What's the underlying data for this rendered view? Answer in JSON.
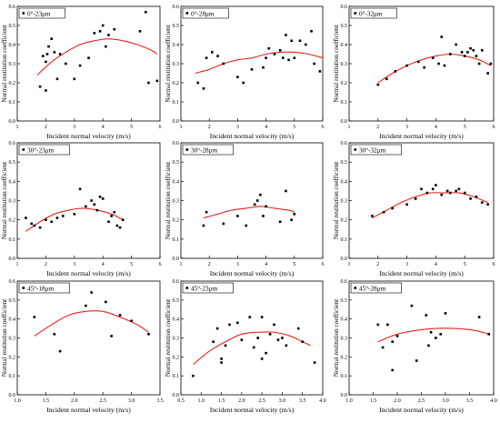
{
  "colors": {
    "points": "#000000",
    "fit": "#e8221c",
    "axis": "#000000"
  },
  "ylabel_all": "Normal restitution coefficient",
  "xlabel_all": "Incident normal velocity  (m/s)",
  "chart_data": [
    {
      "type": "scatter",
      "legend": "0°-23μm",
      "legend_position": "top-left",
      "xlim": [
        1,
        6
      ],
      "ylim": [
        0.0,
        0.6
      ],
      "xticks": [
        "1",
        "2",
        "3",
        "4",
        "5",
        "6"
      ],
      "yticks": [
        "0.0",
        "0.1",
        "0.2",
        "0.3",
        "0.4",
        "0.5",
        "0.6"
      ],
      "xlabel": "Incident normal velocity  (m/s)",
      "ylabel": "Normal restitution coefficient",
      "points": [
        [
          1.8,
          0.18
        ],
        [
          1.9,
          0.34
        ],
        [
          2.0,
          0.16
        ],
        [
          2.0,
          0.31
        ],
        [
          2.05,
          0.35
        ],
        [
          2.1,
          0.39
        ],
        [
          2.2,
          0.43
        ],
        [
          2.3,
          0.36
        ],
        [
          2.4,
          0.22
        ],
        [
          2.5,
          0.35
        ],
        [
          2.7,
          0.3
        ],
        [
          3.0,
          0.22
        ],
        [
          3.2,
          0.29
        ],
        [
          3.5,
          0.33
        ],
        [
          3.7,
          0.46
        ],
        [
          3.9,
          0.47
        ],
        [
          4.0,
          0.5
        ],
        [
          4.1,
          0.39
        ],
        [
          4.2,
          0.45
        ],
        [
          4.4,
          0.48
        ],
        [
          5.3,
          0.47
        ],
        [
          5.5,
          0.57
        ],
        [
          5.6,
          0.2
        ],
        [
          5.9,
          0.21
        ]
      ],
      "fit": [
        [
          1.7,
          0.24
        ],
        [
          2.2,
          0.31
        ],
        [
          2.7,
          0.36
        ],
        [
          3.2,
          0.4
        ],
        [
          3.7,
          0.42
        ],
        [
          4.2,
          0.43
        ],
        [
          4.7,
          0.42
        ],
        [
          5.2,
          0.4
        ],
        [
          5.7,
          0.37
        ],
        [
          5.9,
          0.35
        ]
      ]
    },
    {
      "type": "scatter",
      "legend": "0°-28μm",
      "legend_position": "top-left",
      "xlim": [
        1,
        6
      ],
      "ylim": [
        0.0,
        0.6
      ],
      "xticks": [
        "1",
        "2",
        "3",
        "4",
        "5",
        "6"
      ],
      "yticks": [
        "0.0",
        "0.1",
        "0.2",
        "0.3",
        "0.4",
        "0.5",
        "0.6"
      ],
      "xlabel": "Incident normal velocity  (m/s)",
      "ylabel": "Normal restitution coefficient",
      "points": [
        [
          1.6,
          0.2
        ],
        [
          1.8,
          0.17
        ],
        [
          1.9,
          0.33
        ],
        [
          2.1,
          0.36
        ],
        [
          2.3,
          0.34
        ],
        [
          2.5,
          0.3
        ],
        [
          3.0,
          0.23
        ],
        [
          3.2,
          0.2
        ],
        [
          3.5,
          0.27
        ],
        [
          3.9,
          0.28
        ],
        [
          4.0,
          0.33
        ],
        [
          4.1,
          0.38
        ],
        [
          4.3,
          0.35
        ],
        [
          4.5,
          0.37
        ],
        [
          4.6,
          0.33
        ],
        [
          4.7,
          0.45
        ],
        [
          4.8,
          0.32
        ],
        [
          4.9,
          0.42
        ],
        [
          5.0,
          0.33
        ],
        [
          5.2,
          0.42
        ],
        [
          5.4,
          0.4
        ],
        [
          5.6,
          0.47
        ],
        [
          5.7,
          0.3
        ],
        [
          5.9,
          0.26
        ]
      ],
      "fit": [
        [
          1.5,
          0.25
        ],
        [
          2.0,
          0.27
        ],
        [
          2.5,
          0.3
        ],
        [
          3.0,
          0.32
        ],
        [
          3.5,
          0.33
        ],
        [
          4.0,
          0.35
        ],
        [
          4.5,
          0.36
        ],
        [
          5.0,
          0.36
        ],
        [
          5.5,
          0.35
        ],
        [
          6.0,
          0.33
        ]
      ]
    },
    {
      "type": "scatter",
      "legend": "0°-32μm",
      "legend_position": "top-left",
      "xlim": [
        1,
        6
      ],
      "ylim": [
        0.0,
        0.6
      ],
      "xticks": [
        "1",
        "2",
        "3",
        "4",
        "5",
        "6"
      ],
      "yticks": [
        "0.0",
        "0.1",
        "0.2",
        "0.3",
        "0.4",
        "0.5",
        "0.6"
      ],
      "xlabel": "Incident normal velocity  (m/s)",
      "ylabel": "Normal restitution coefficient",
      "points": [
        [
          2.0,
          0.19
        ],
        [
          2.3,
          0.22
        ],
        [
          2.6,
          0.26
        ],
        [
          3.0,
          0.29
        ],
        [
          3.4,
          0.31
        ],
        [
          3.6,
          0.28
        ],
        [
          3.9,
          0.33
        ],
        [
          4.1,
          0.3
        ],
        [
          4.2,
          0.44
        ],
        [
          4.3,
          0.29
        ],
        [
          4.5,
          0.35
        ],
        [
          4.7,
          0.4
        ],
        [
          4.9,
          0.36
        ],
        [
          5.0,
          0.34
        ],
        [
          5.1,
          0.36
        ],
        [
          5.2,
          0.38
        ],
        [
          5.3,
          0.37
        ],
        [
          5.4,
          0.34
        ],
        [
          5.5,
          0.3
        ],
        [
          5.6,
          0.37
        ],
        [
          5.8,
          0.25
        ],
        [
          5.9,
          0.3
        ]
      ],
      "fit": [
        [
          2.0,
          0.2
        ],
        [
          2.5,
          0.25
        ],
        [
          3.0,
          0.29
        ],
        [
          3.5,
          0.32
        ],
        [
          4.0,
          0.34
        ],
        [
          4.5,
          0.35
        ],
        [
          5.0,
          0.34
        ],
        [
          5.5,
          0.32
        ],
        [
          5.9,
          0.29
        ]
      ]
    },
    {
      "type": "scatter",
      "legend": "30°-23μm",
      "legend_position": "top-left",
      "xlim": [
        1,
        6
      ],
      "ylim": [
        0.0,
        0.6
      ],
      "xticks": [
        "1",
        "2",
        "3",
        "4",
        "5",
        "6"
      ],
      "yticks": [
        "0.0",
        "0.1",
        "0.2",
        "0.3",
        "0.4",
        "0.5",
        "0.6"
      ],
      "xlabel": "Incident normal velocity  (m/s)",
      "ylabel": "Normal restitution coefficient",
      "points": [
        [
          1.3,
          0.21
        ],
        [
          1.5,
          0.18
        ],
        [
          1.6,
          0.17
        ],
        [
          1.8,
          0.16
        ],
        [
          2.0,
          0.2
        ],
        [
          2.2,
          0.19
        ],
        [
          2.4,
          0.21
        ],
        [
          2.6,
          0.22
        ],
        [
          3.0,
          0.23
        ],
        [
          3.2,
          0.36
        ],
        [
          3.4,
          0.27
        ],
        [
          3.6,
          0.3
        ],
        [
          3.7,
          0.28
        ],
        [
          3.8,
          0.25
        ],
        [
          3.9,
          0.32
        ],
        [
          4.0,
          0.31
        ],
        [
          4.2,
          0.19
        ],
        [
          4.3,
          0.22
        ],
        [
          4.4,
          0.24
        ],
        [
          4.5,
          0.17
        ],
        [
          4.6,
          0.16
        ],
        [
          4.7,
          0.2
        ]
      ],
      "fit": [
        [
          1.3,
          0.14
        ],
        [
          1.8,
          0.19
        ],
        [
          2.3,
          0.23
        ],
        [
          2.8,
          0.25
        ],
        [
          3.3,
          0.26
        ],
        [
          3.8,
          0.25
        ],
        [
          4.3,
          0.23
        ],
        [
          4.7,
          0.2
        ]
      ]
    },
    {
      "type": "scatter",
      "legend": "30°-28μm",
      "legend_position": "top-left",
      "xlim": [
        1,
        6
      ],
      "ylim": [
        0.0,
        0.6
      ],
      "xticks": [
        "1",
        "2",
        "3",
        "4",
        "5",
        "6"
      ],
      "yticks": [
        "0.0",
        "0.1",
        "0.2",
        "0.3",
        "0.4",
        "0.5",
        "0.6"
      ],
      "xlabel": "Incident normal velocity  (m/s)",
      "ylabel": "Normal restitution coefficient",
      "points": [
        [
          1.8,
          0.17
        ],
        [
          1.9,
          0.24
        ],
        [
          2.5,
          0.18
        ],
        [
          3.0,
          0.22
        ],
        [
          3.3,
          0.17
        ],
        [
          3.6,
          0.28
        ],
        [
          3.7,
          0.3
        ],
        [
          3.8,
          0.33
        ],
        [
          3.9,
          0.22
        ],
        [
          4.0,
          0.27
        ],
        [
          4.5,
          0.19
        ],
        [
          4.7,
          0.35
        ],
        [
          4.9,
          0.2
        ],
        [
          5.0,
          0.23
        ]
      ],
      "fit": [
        [
          1.8,
          0.21
        ],
        [
          2.3,
          0.23
        ],
        [
          2.8,
          0.25
        ],
        [
          3.3,
          0.26
        ],
        [
          3.8,
          0.27
        ],
        [
          4.3,
          0.26
        ],
        [
          4.8,
          0.25
        ],
        [
          5.0,
          0.24
        ]
      ]
    },
    {
      "type": "scatter",
      "legend": "30°-32μm",
      "legend_position": "top-left",
      "xlim": [
        1,
        6
      ],
      "ylim": [
        0.0,
        0.6
      ],
      "xticks": [
        "1",
        "2",
        "3",
        "4",
        "5",
        "6"
      ],
      "yticks": [
        "0.0",
        "0.1",
        "0.2",
        "0.3",
        "0.4",
        "0.5",
        "0.6"
      ],
      "xlabel": "Incident normal velocity  (m/s)",
      "ylabel": "Normal restitution coefficient",
      "points": [
        [
          1.8,
          0.22
        ],
        [
          2.2,
          0.24
        ],
        [
          2.5,
          0.26
        ],
        [
          3.0,
          0.28
        ],
        [
          3.3,
          0.31
        ],
        [
          3.5,
          0.36
        ],
        [
          3.7,
          0.34
        ],
        [
          3.9,
          0.36
        ],
        [
          4.0,
          0.38
        ],
        [
          4.2,
          0.33
        ],
        [
          4.4,
          0.35
        ],
        [
          4.5,
          0.34
        ],
        [
          4.7,
          0.35
        ],
        [
          4.8,
          0.36
        ],
        [
          5.0,
          0.34
        ],
        [
          5.2,
          0.31
        ],
        [
          5.4,
          0.32
        ],
        [
          5.6,
          0.29
        ],
        [
          5.8,
          0.28
        ]
      ],
      "fit": [
        [
          1.8,
          0.21
        ],
        [
          2.3,
          0.25
        ],
        [
          2.8,
          0.29
        ],
        [
          3.3,
          0.32
        ],
        [
          3.8,
          0.34
        ],
        [
          4.3,
          0.34
        ],
        [
          4.8,
          0.34
        ],
        [
          5.3,
          0.32
        ],
        [
          5.8,
          0.29
        ]
      ]
    },
    {
      "type": "scatter",
      "legend": "45°-18μm",
      "legend_position": "top-left",
      "xlim": [
        1.0,
        3.5
      ],
      "ylim": [
        0.0,
        0.6
      ],
      "xticks": [
        "1.0",
        "1.5",
        "2.0",
        "2.5",
        "3.0",
        "3.5"
      ],
      "yticks": [
        "0.0",
        "0.1",
        "0.2",
        "0.3",
        "0.4",
        "0.5",
        "0.6"
      ],
      "xlabel": "Incident normal velocity  (m/s)",
      "ylabel": "Normal restitution coefficient",
      "points": [
        [
          1.3,
          0.41
        ],
        [
          1.65,
          0.32
        ],
        [
          1.75,
          0.23
        ],
        [
          2.2,
          0.47
        ],
        [
          2.3,
          0.54
        ],
        [
          2.55,
          0.49
        ],
        [
          2.65,
          0.31
        ],
        [
          2.8,
          0.42
        ],
        [
          3.0,
          0.39
        ],
        [
          3.3,
          0.32
        ]
      ],
      "fit": [
        [
          1.3,
          0.31
        ],
        [
          1.6,
          0.37
        ],
        [
          1.9,
          0.42
        ],
        [
          2.2,
          0.44
        ],
        [
          2.5,
          0.44
        ],
        [
          2.8,
          0.41
        ],
        [
          3.1,
          0.37
        ],
        [
          3.3,
          0.33
        ]
      ]
    },
    {
      "type": "scatter",
      "legend": "45°-23μm",
      "legend_position": "top-left",
      "xlim": [
        0.5,
        4.0
      ],
      "ylim": [
        0.0,
        0.6
      ],
      "xticks": [
        "0.5",
        "1.0",
        "1.5",
        "2.0",
        "2.5",
        "3.0",
        "3.5",
        "4.0"
      ],
      "yticks": [
        "0.0",
        "0.1",
        "0.2",
        "0.3",
        "0.4",
        "0.5",
        "0.6"
      ],
      "xlabel": "Incident normal velocity  (m/s)",
      "ylabel": "Normal restitution coefficient",
      "points": [
        [
          0.8,
          0.1
        ],
        [
          1.3,
          0.28
        ],
        [
          1.4,
          0.35
        ],
        [
          1.5,
          0.19
        ],
        [
          1.5,
          0.17
        ],
        [
          1.6,
          0.26
        ],
        [
          1.7,
          0.37
        ],
        [
          1.9,
          0.38
        ],
        [
          2.0,
          0.29
        ],
        [
          2.2,
          0.41
        ],
        [
          2.3,
          0.25
        ],
        [
          2.4,
          0.3
        ],
        [
          2.5,
          0.19
        ],
        [
          2.5,
          0.41
        ],
        [
          2.6,
          0.22
        ],
        [
          2.7,
          0.32
        ],
        [
          2.8,
          0.37
        ],
        [
          2.9,
          0.29
        ],
        [
          3.0,
          0.3
        ],
        [
          3.1,
          0.26
        ],
        [
          3.4,
          0.35
        ],
        [
          3.5,
          0.28
        ],
        [
          3.8,
          0.17
        ]
      ],
      "fit": [
        [
          0.8,
          0.16
        ],
        [
          1.2,
          0.23
        ],
        [
          1.6,
          0.28
        ],
        [
          2.0,
          0.32
        ],
        [
          2.4,
          0.33
        ],
        [
          2.8,
          0.33
        ],
        [
          3.2,
          0.31
        ],
        [
          3.5,
          0.28
        ],
        [
          3.7,
          0.26
        ]
      ]
    },
    {
      "type": "scatter",
      "legend": "45°-28μm",
      "legend_position": "top-left",
      "xlim": [
        1.0,
        4.0
      ],
      "ylim": [
        0.0,
        0.6
      ],
      "xticks": [
        "1.0",
        "1.5",
        "2.0",
        "2.5",
        "3.0",
        "3.5",
        "4.0"
      ],
      "yticks": [
        "0.0",
        "0.1",
        "0.2",
        "0.3",
        "0.4",
        "0.5",
        "0.6"
      ],
      "xlabel": "Incident normal velocity  (m/s)",
      "ylabel": "Normal restitution coefficient",
      "points": [
        [
          1.6,
          0.37
        ],
        [
          1.7,
          0.25
        ],
        [
          1.8,
          0.37
        ],
        [
          1.9,
          0.13
        ],
        [
          1.9,
          0.28
        ],
        [
          2.0,
          0.31
        ],
        [
          2.3,
          0.47
        ],
        [
          2.4,
          0.18
        ],
        [
          2.6,
          0.42
        ],
        [
          2.65,
          0.26
        ],
        [
          2.7,
          0.33
        ],
        [
          2.8,
          0.3
        ],
        [
          2.9,
          0.32
        ],
        [
          3.0,
          0.43
        ],
        [
          3.7,
          0.41
        ],
        [
          3.9,
          0.32
        ]
      ],
      "fit": [
        [
          1.6,
          0.28
        ],
        [
          2.0,
          0.32
        ],
        [
          2.4,
          0.34
        ],
        [
          2.8,
          0.35
        ],
        [
          3.2,
          0.35
        ],
        [
          3.6,
          0.34
        ],
        [
          3.9,
          0.32
        ]
      ]
    }
  ]
}
